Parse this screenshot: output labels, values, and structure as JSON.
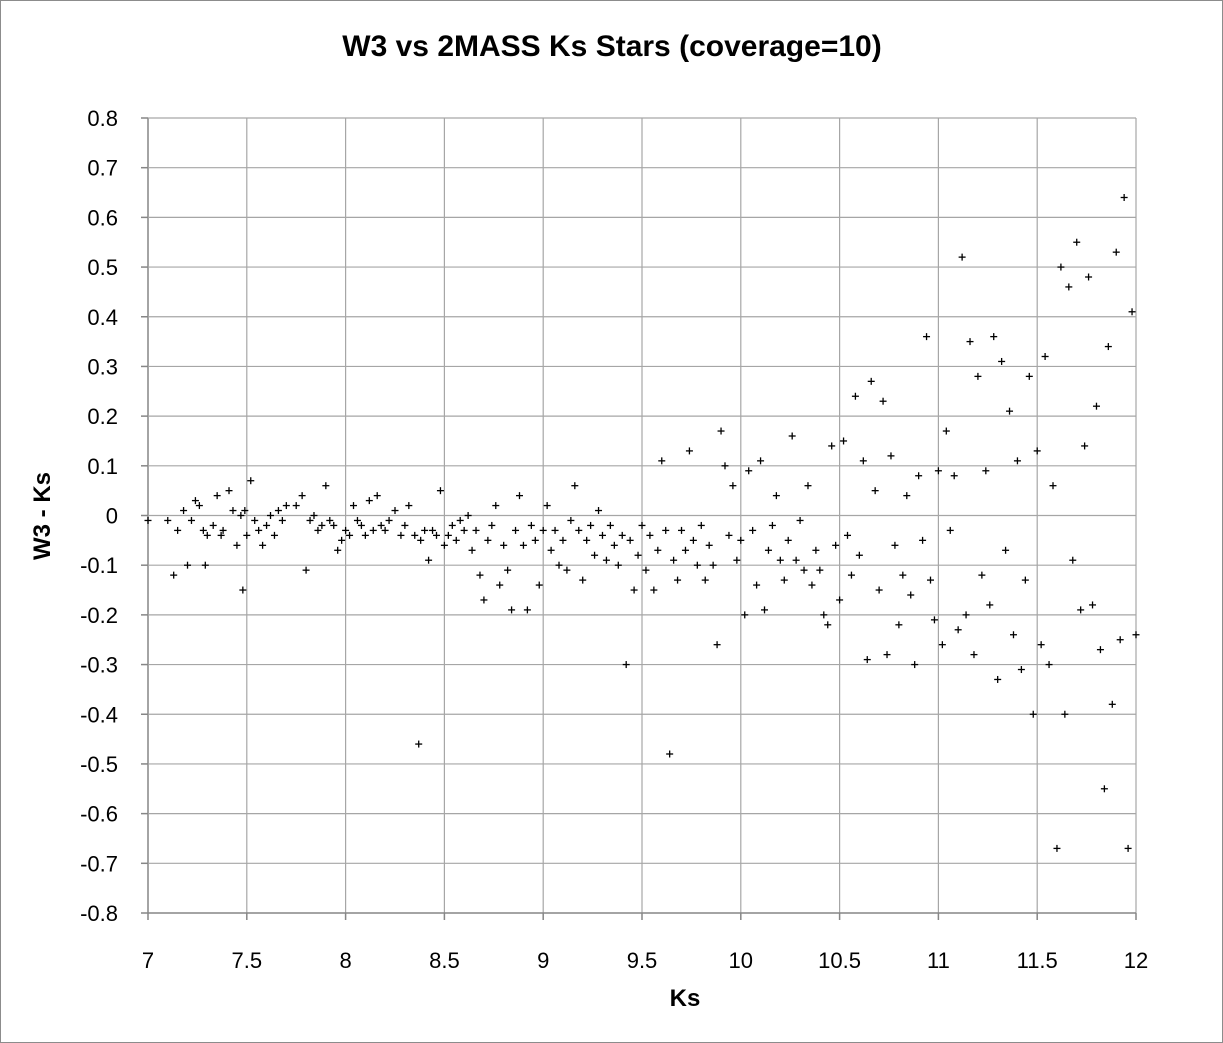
{
  "chart_data": {
    "type": "scatter",
    "title": "W3 vs 2MASS Ks Stars (coverage=10)",
    "xlabel": "Ks",
    "ylabel": "W3 - Ks",
    "xlim": [
      7,
      12
    ],
    "ylim": [
      -0.8,
      0.8
    ],
    "xticks": [
      "7",
      "7.5",
      "8",
      "8.5",
      "9",
      "9.5",
      "10",
      "10.5",
      "11",
      "11.5",
      "12"
    ],
    "yticks": [
      "0.8",
      "0.7",
      "0.6",
      "0.5",
      "0.4",
      "0.3",
      "0.2",
      "0.1",
      "0",
      "-0.1",
      "-0.2",
      "-0.3",
      "-0.4",
      "-0.5",
      "-0.6",
      "-0.7",
      "-0.8"
    ],
    "grid": true,
    "legend": "none",
    "marker": "+",
    "color": "#000000",
    "points": [
      [
        7.0,
        -0.01
      ],
      [
        7.1,
        -0.01
      ],
      [
        7.13,
        -0.12
      ],
      [
        7.15,
        -0.03
      ],
      [
        7.18,
        0.01
      ],
      [
        7.2,
        -0.1
      ],
      [
        7.22,
        -0.01
      ],
      [
        7.24,
        0.03
      ],
      [
        7.26,
        0.02
      ],
      [
        7.28,
        -0.03
      ],
      [
        7.29,
        -0.1
      ],
      [
        7.3,
        -0.04
      ],
      [
        7.33,
        -0.02
      ],
      [
        7.35,
        0.04
      ],
      [
        7.37,
        -0.04
      ],
      [
        7.38,
        -0.03
      ],
      [
        7.41,
        0.05
      ],
      [
        7.43,
        0.01
      ],
      [
        7.45,
        -0.06
      ],
      [
        7.47,
        0.0
      ],
      [
        7.48,
        -0.15
      ],
      [
        7.49,
        0.01
      ],
      [
        7.5,
        -0.04
      ],
      [
        7.52,
        0.07
      ],
      [
        7.54,
        -0.01
      ],
      [
        7.56,
        -0.03
      ],
      [
        7.58,
        -0.06
      ],
      [
        7.6,
        -0.02
      ],
      [
        7.62,
        0.0
      ],
      [
        7.64,
        -0.04
      ],
      [
        7.66,
        0.01
      ],
      [
        7.68,
        -0.01
      ],
      [
        7.7,
        0.02
      ],
      [
        7.75,
        0.02
      ],
      [
        7.78,
        0.04
      ],
      [
        7.8,
        -0.11
      ],
      [
        7.82,
        -0.01
      ],
      [
        7.84,
        0.0
      ],
      [
        7.86,
        -0.03
      ],
      [
        7.88,
        -0.02
      ],
      [
        7.9,
        0.06
      ],
      [
        7.92,
        -0.01
      ],
      [
        7.94,
        -0.02
      ],
      [
        7.96,
        -0.07
      ],
      [
        7.98,
        -0.05
      ],
      [
        8.0,
        -0.03
      ],
      [
        8.02,
        -0.04
      ],
      [
        8.04,
        0.02
      ],
      [
        8.06,
        -0.01
      ],
      [
        8.08,
        -0.02
      ],
      [
        8.1,
        -0.04
      ],
      [
        8.12,
        0.03
      ],
      [
        8.14,
        -0.03
      ],
      [
        8.16,
        0.04
      ],
      [
        8.18,
        -0.02
      ],
      [
        8.2,
        -0.03
      ],
      [
        8.22,
        -0.01
      ],
      [
        8.25,
        0.01
      ],
      [
        8.28,
        -0.04
      ],
      [
        8.3,
        -0.02
      ],
      [
        8.32,
        0.02
      ],
      [
        8.35,
        -0.04
      ],
      [
        8.37,
        -0.46
      ],
      [
        8.38,
        -0.05
      ],
      [
        8.4,
        -0.03
      ],
      [
        8.42,
        -0.09
      ],
      [
        8.44,
        -0.03
      ],
      [
        8.46,
        -0.04
      ],
      [
        8.48,
        0.05
      ],
      [
        8.5,
        -0.06
      ],
      [
        8.52,
        -0.04
      ],
      [
        8.54,
        -0.02
      ],
      [
        8.56,
        -0.05
      ],
      [
        8.58,
        -0.01
      ],
      [
        8.6,
        -0.03
      ],
      [
        8.62,
        0.0
      ],
      [
        8.64,
        -0.07
      ],
      [
        8.66,
        -0.03
      ],
      [
        8.68,
        -0.12
      ],
      [
        8.7,
        -0.17
      ],
      [
        8.72,
        -0.05
      ],
      [
        8.74,
        -0.02
      ],
      [
        8.76,
        0.02
      ],
      [
        8.78,
        -0.14
      ],
      [
        8.8,
        -0.06
      ],
      [
        8.82,
        -0.11
      ],
      [
        8.84,
        -0.19
      ],
      [
        8.86,
        -0.03
      ],
      [
        8.88,
        0.04
      ],
      [
        8.9,
        -0.06
      ],
      [
        8.92,
        -0.19
      ],
      [
        8.94,
        -0.02
      ],
      [
        8.96,
        -0.05
      ],
      [
        8.98,
        -0.14
      ],
      [
        9.0,
        -0.03
      ],
      [
        9.02,
        0.02
      ],
      [
        9.04,
        -0.07
      ],
      [
        9.06,
        -0.03
      ],
      [
        9.08,
        -0.1
      ],
      [
        9.1,
        -0.05
      ],
      [
        9.12,
        -0.11
      ],
      [
        9.14,
        -0.01
      ],
      [
        9.16,
        0.06
      ],
      [
        9.18,
        -0.03
      ],
      [
        9.2,
        -0.13
      ],
      [
        9.22,
        -0.05
      ],
      [
        9.24,
        -0.02
      ],
      [
        9.26,
        -0.08
      ],
      [
        9.28,
        0.01
      ],
      [
        9.3,
        -0.04
      ],
      [
        9.32,
        -0.09
      ],
      [
        9.34,
        -0.02
      ],
      [
        9.36,
        -0.06
      ],
      [
        9.38,
        -0.1
      ],
      [
        9.4,
        -0.04
      ],
      [
        9.42,
        -0.3
      ],
      [
        9.44,
        -0.05
      ],
      [
        9.46,
        -0.15
      ],
      [
        9.48,
        -0.08
      ],
      [
        9.5,
        -0.02
      ],
      [
        9.52,
        -0.11
      ],
      [
        9.54,
        -0.04
      ],
      [
        9.56,
        -0.15
      ],
      [
        9.58,
        -0.07
      ],
      [
        9.6,
        0.11
      ],
      [
        9.62,
        -0.03
      ],
      [
        9.64,
        -0.48
      ],
      [
        9.66,
        -0.09
      ],
      [
        9.68,
        -0.13
      ],
      [
        9.7,
        -0.03
      ],
      [
        9.72,
        -0.07
      ],
      [
        9.74,
        0.13
      ],
      [
        9.76,
        -0.05
      ],
      [
        9.78,
        -0.1
      ],
      [
        9.8,
        -0.02
      ],
      [
        9.82,
        -0.13
      ],
      [
        9.84,
        -0.06
      ],
      [
        9.86,
        -0.1
      ],
      [
        9.88,
        -0.26
      ],
      [
        9.9,
        0.17
      ],
      [
        9.92,
        0.1
      ],
      [
        9.94,
        -0.04
      ],
      [
        9.96,
        0.06
      ],
      [
        9.98,
        -0.09
      ],
      [
        10.0,
        -0.05
      ],
      [
        10.02,
        -0.2
      ],
      [
        10.04,
        0.09
      ],
      [
        10.06,
        -0.03
      ],
      [
        10.08,
        -0.14
      ],
      [
        10.1,
        0.11
      ],
      [
        10.12,
        -0.19
      ],
      [
        10.14,
        -0.07
      ],
      [
        10.16,
        -0.02
      ],
      [
        10.18,
        0.04
      ],
      [
        10.2,
        -0.09
      ],
      [
        10.22,
        -0.13
      ],
      [
        10.24,
        -0.05
      ],
      [
        10.26,
        0.16
      ],
      [
        10.28,
        -0.09
      ],
      [
        10.3,
        -0.01
      ],
      [
        10.32,
        -0.11
      ],
      [
        10.34,
        0.06
      ],
      [
        10.36,
        -0.14
      ],
      [
        10.38,
        -0.07
      ],
      [
        10.4,
        -0.11
      ],
      [
        10.42,
        -0.2
      ],
      [
        10.44,
        -0.22
      ],
      [
        10.46,
        0.14
      ],
      [
        10.48,
        -0.06
      ],
      [
        10.5,
        -0.17
      ],
      [
        10.52,
        0.15
      ],
      [
        10.54,
        -0.04
      ],
      [
        10.56,
        -0.12
      ],
      [
        10.58,
        0.24
      ],
      [
        10.6,
        -0.08
      ],
      [
        10.62,
        0.11
      ],
      [
        10.64,
        -0.29
      ],
      [
        10.66,
        0.27
      ],
      [
        10.68,
        0.05
      ],
      [
        10.7,
        -0.15
      ],
      [
        10.72,
        0.23
      ],
      [
        10.74,
        -0.28
      ],
      [
        10.76,
        0.12
      ],
      [
        10.78,
        -0.06
      ],
      [
        10.8,
        -0.22
      ],
      [
        10.82,
        -0.12
      ],
      [
        10.84,
        0.04
      ],
      [
        10.86,
        -0.16
      ],
      [
        10.88,
        -0.3
      ],
      [
        10.9,
        0.08
      ],
      [
        10.92,
        -0.05
      ],
      [
        10.94,
        0.36
      ],
      [
        10.96,
        -0.13
      ],
      [
        10.98,
        -0.21
      ],
      [
        11.0,
        0.09
      ],
      [
        11.02,
        -0.26
      ],
      [
        11.04,
        0.17
      ],
      [
        11.06,
        -0.03
      ],
      [
        11.08,
        0.08
      ],
      [
        11.1,
        -0.23
      ],
      [
        11.12,
        0.52
      ],
      [
        11.14,
        -0.2
      ],
      [
        11.16,
        0.35
      ],
      [
        11.18,
        -0.28
      ],
      [
        11.2,
        0.28
      ],
      [
        11.22,
        -0.12
      ],
      [
        11.24,
        0.09
      ],
      [
        11.26,
        -0.18
      ],
      [
        11.28,
        0.36
      ],
      [
        11.3,
        -0.33
      ],
      [
        11.32,
        0.31
      ],
      [
        11.34,
        -0.07
      ],
      [
        11.36,
        0.21
      ],
      [
        11.38,
        -0.24
      ],
      [
        11.4,
        0.11
      ],
      [
        11.42,
        -0.31
      ],
      [
        11.44,
        -0.13
      ],
      [
        11.46,
        0.28
      ],
      [
        11.48,
        -0.4
      ],
      [
        11.5,
        0.13
      ],
      [
        11.52,
        -0.26
      ],
      [
        11.54,
        0.32
      ],
      [
        11.56,
        -0.3
      ],
      [
        11.58,
        0.06
      ],
      [
        11.6,
        -0.67
      ],
      [
        11.62,
        0.5
      ],
      [
        11.64,
        -0.4
      ],
      [
        11.66,
        0.46
      ],
      [
        11.68,
        -0.09
      ],
      [
        11.7,
        0.55
      ],
      [
        11.72,
        -0.19
      ],
      [
        11.74,
        0.14
      ],
      [
        11.76,
        0.48
      ],
      [
        11.78,
        -0.18
      ],
      [
        11.8,
        0.22
      ],
      [
        11.82,
        -0.27
      ],
      [
        11.84,
        -0.55
      ],
      [
        11.86,
        0.34
      ],
      [
        11.88,
        -0.38
      ],
      [
        11.9,
        0.53
      ],
      [
        11.92,
        -0.25
      ],
      [
        11.94,
        0.64
      ],
      [
        11.96,
        -0.67
      ],
      [
        11.98,
        0.41
      ],
      [
        12.0,
        -0.24
      ]
    ]
  }
}
